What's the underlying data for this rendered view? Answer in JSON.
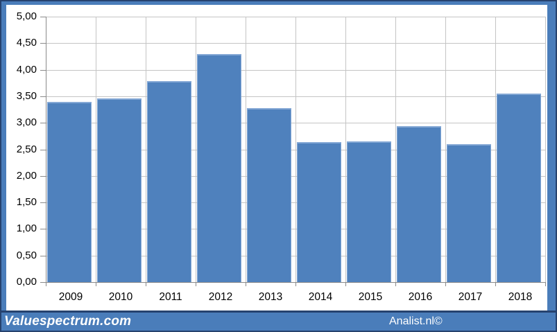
{
  "branding": {
    "left": "Valuespectrum.com",
    "right": "Analist.nl©"
  },
  "colors": {
    "bar_fill": "#4f81bd",
    "bar_edge": "#84a8d5",
    "frame_fill": "#4a7dba",
    "frame_outline": "#26426e",
    "gridline": "#c4c4c4",
    "axis": "#8a8a8a",
    "label_text": "#000000",
    "footer_text": "#ffffff",
    "plot_background": "#ffffff"
  },
  "chart_data": {
    "type": "bar",
    "categories": [
      "2009",
      "2010",
      "2011",
      "2012",
      "2013",
      "2014",
      "2015",
      "2016",
      "2017",
      "2018"
    ],
    "values": [
      3.39,
      3.46,
      3.78,
      4.3,
      3.28,
      2.64,
      2.65,
      2.94,
      2.6,
      3.55
    ],
    "ylim": [
      0,
      5
    ],
    "ytick_step": 0.5,
    "ytick_labels_desc": [
      "5,00",
      "4,50",
      "4,00",
      "3,50",
      "3,00",
      "2,50",
      "2,00",
      "1,50",
      "1,00",
      "0,50",
      "0,00"
    ],
    "decimal_separator": ",",
    "grid": true,
    "legend": false,
    "bar_color": "#4f81bd",
    "plot_area_bg": "#ffffff"
  }
}
